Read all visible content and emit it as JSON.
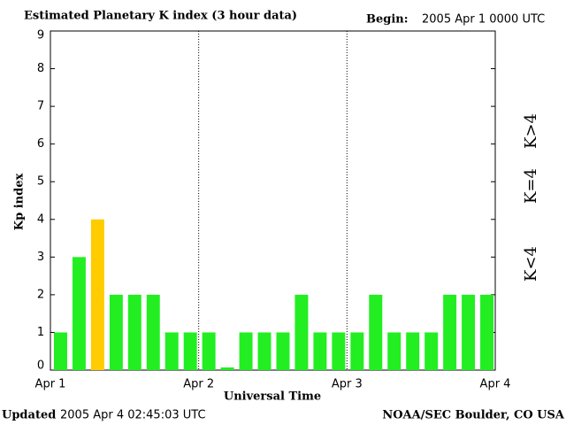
{
  "chart_data": {
    "type": "bar",
    "title": "Estimated Planetary K index (3 hour data)",
    "begin_label": "Begin:",
    "begin_value": "2005 Apr 1 0000 UTC",
    "ylabel": "Kp index",
    "xlabel": "Universal Time",
    "updated_label": "Updated",
    "updated_value": "2005 Apr  4 02:45:03 UTC",
    "source": "NOAA/SEC Boulder, CO USA",
    "day_labels": [
      "Apr 1",
      "Apr 2",
      "Apr 3",
      "Apr 4"
    ],
    "values": [
      1,
      3,
      4,
      2,
      2,
      2,
      1,
      1,
      1,
      0,
      1,
      1,
      1,
      2,
      1,
      1,
      1,
      2,
      1,
      1,
      1,
      2,
      2,
      2
    ],
    "colors": [
      "#22ee22",
      "#22ee22",
      "#ffcc00",
      "#22ee22",
      "#22ee22",
      "#22ee22",
      "#22ee22",
      "#22ee22",
      "#22ee22",
      "#22ee22",
      "#22ee22",
      "#22ee22",
      "#22ee22",
      "#22ee22",
      "#22ee22",
      "#22ee22",
      "#22ee22",
      "#22ee22",
      "#22ee22",
      "#22ee22",
      "#22ee22",
      "#22ee22",
      "#22ee22",
      "#22ee22"
    ],
    "ylim": [
      0,
      9
    ],
    "yticks": [
      0,
      1,
      2,
      3,
      4,
      5,
      6,
      7,
      8,
      9
    ],
    "legend": [
      {
        "label": "K<4",
        "color": "#22ee22"
      },
      {
        "label": "K=4",
        "color": "#ffcc00"
      },
      {
        "label": "K>4",
        "color": "#ff2200"
      }
    ]
  }
}
